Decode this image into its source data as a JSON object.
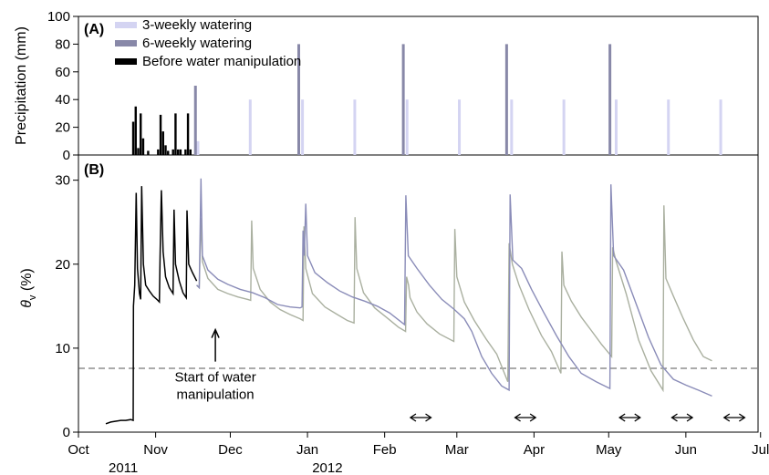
{
  "chart_data": [
    {
      "panel": "(A)",
      "type": "bar",
      "ylabel": "Precipitation (mm)",
      "ylim": [
        0,
        100
      ],
      "yticks": [
        0,
        20,
        40,
        60,
        80,
        100
      ],
      "xlim": [
        0,
        273
      ],
      "legend_position": "top-left",
      "colors": {
        "before": "#000000",
        "six": "#8888a8",
        "three": "#d4d4f2"
      },
      "series": [
        {
          "name": "3-weekly watering",
          "color_key": "three",
          "bars": [
            {
              "x": 48,
              "y": 10
            },
            {
              "x": 69,
              "y": 40
            },
            {
              "x": 90,
              "y": 40
            },
            {
              "x": 111,
              "y": 40
            },
            {
              "x": 132,
              "y": 40
            },
            {
              "x": 153,
              "y": 40
            },
            {
              "x": 174,
              "y": 40
            },
            {
              "x": 195,
              "y": 40
            },
            {
              "x": 216,
              "y": 40
            },
            {
              "x": 237,
              "y": 40
            },
            {
              "x": 258,
              "y": 40
            }
          ]
        },
        {
          "name": "6-weekly watering",
          "color_key": "six",
          "bars": [
            {
              "x": 47,
              "y": 50
            },
            {
              "x": 88.5,
              "y": 80
            },
            {
              "x": 130.5,
              "y": 80
            },
            {
              "x": 172,
              "y": 80
            },
            {
              "x": 213.5,
              "y": 80
            }
          ]
        },
        {
          "name": "Before water manipulation",
          "color_key": "before",
          "bars": [
            {
              "x": 22,
              "y": 24
            },
            {
              "x": 23,
              "y": 35
            },
            {
              "x": 24,
              "y": 5
            },
            {
              "x": 25,
              "y": 30
            },
            {
              "x": 26,
              "y": 12
            },
            {
              "x": 28,
              "y": 3
            },
            {
              "x": 32,
              "y": 4
            },
            {
              "x": 33,
              "y": 29
            },
            {
              "x": 34,
              "y": 17
            },
            {
              "x": 35,
              "y": 7
            },
            {
              "x": 36,
              "y": 3
            },
            {
              "x": 38,
              "y": 4
            },
            {
              "x": 39,
              "y": 30
            },
            {
              "x": 40,
              "y": 4
            },
            {
              "x": 41,
              "y": 4
            },
            {
              "x": 43,
              "y": 4
            },
            {
              "x": 44,
              "y": 30
            },
            {
              "x": 45,
              "y": 4
            }
          ]
        }
      ]
    },
    {
      "panel": "(B)",
      "type": "line",
      "ylabel": "θv (%)",
      "ylim": [
        0,
        33
      ],
      "yticks": [
        0,
        10,
        20,
        30
      ],
      "xlim": [
        0,
        273
      ],
      "x_unit": "days since 1 Oct 2011",
      "xticks": [
        {
          "label": "Oct",
          "x": 0
        },
        {
          "label": "Nov",
          "x": 31
        },
        {
          "label": "Dec",
          "x": 61
        },
        {
          "label": "Jan",
          "x": 92
        },
        {
          "label": "Feb",
          "x": 123
        },
        {
          "label": "Mar",
          "x": 152
        },
        {
          "label": "Apr",
          "x": 183
        },
        {
          "label": "May",
          "x": 213
        },
        {
          "label": "Jun",
          "x": 244
        },
        {
          "label": "Jul",
          "x": 274
        }
      ],
      "year_labels": [
        {
          "label": "2011",
          "x": 18
        },
        {
          "label": "2012",
          "x": 100
        }
      ],
      "reference_line": {
        "y": 7.6,
        "style": "dashed"
      },
      "annotation": {
        "lines": [
          "Start of water",
          "manipulation"
        ],
        "x": 55,
        "arrow_tip_y": 12.2,
        "arrow_tail_y": 8.4
      },
      "double_arrows": [
        {
          "x0": 133,
          "x1": 142
        },
        {
          "x0": 175,
          "x1": 184
        },
        {
          "x0": 217,
          "x1": 226
        },
        {
          "x0": 238,
          "x1": 247
        },
        {
          "x0": 259,
          "x1": 268
        }
      ],
      "series": [
        {
          "name": "Before water manipulation",
          "color_key": "before",
          "points": [
            [
              11,
              1.0
            ],
            [
              13,
              1.2
            ],
            [
              15,
              1.3
            ],
            [
              17,
              1.4
            ],
            [
              19,
              1.4
            ],
            [
              21,
              1.5
            ],
            [
              22,
              1.4
            ],
            [
              22.1,
              15
            ],
            [
              22.6,
              17.5
            ],
            [
              23.2,
              28.5
            ],
            [
              23.7,
              19.5
            ],
            [
              24.5,
              16.5
            ],
            [
              25,
              15.8
            ],
            [
              25.4,
              29.3
            ],
            [
              26.1,
              20
            ],
            [
              27,
              17.5
            ],
            [
              28.5,
              16.8
            ],
            [
              30,
              16.2
            ],
            [
              31.5,
              15.8
            ],
            [
              32.5,
              15.5
            ],
            [
              32.8,
              21
            ],
            [
              33.3,
              28.8
            ],
            [
              34,
              21.5
            ],
            [
              35,
              18.5
            ],
            [
              36.5,
              17.2
            ],
            [
              38,
              16.5
            ],
            [
              38.4,
              26.5
            ],
            [
              39,
              20
            ],
            [
              40.5,
              18
            ],
            [
              42,
              16.6
            ],
            [
              43.3,
              16
            ],
            [
              43.6,
              26.4
            ],
            [
              44.3,
              20
            ],
            [
              45.8,
              19
            ],
            [
              47.5,
              18
            ]
          ]
        },
        {
          "name": "3-weekly watering",
          "color_key": "three",
          "points": [
            [
              47.5,
              17.5
            ],
            [
              48.5,
              17.2
            ],
            [
              49.2,
              25.5
            ],
            [
              49.8,
              20.3
            ],
            [
              52,
              18.3
            ],
            [
              56,
              17
            ],
            [
              60,
              16.5
            ],
            [
              64,
              16.1
            ],
            [
              68,
              15.8
            ],
            [
              69.2,
              15.7
            ],
            [
              69.6,
              25.2
            ],
            [
              70.2,
              19.5
            ],
            [
              73,
              17
            ],
            [
              77,
              15.5
            ],
            [
              81,
              14.6
            ],
            [
              85,
              14.0
            ],
            [
              89,
              13.5
            ],
            [
              90.2,
              13.3
            ],
            [
              90.6,
              24.5
            ],
            [
              91.3,
              19.5
            ],
            [
              94,
              16.5
            ],
            [
              99,
              14.9
            ],
            [
              104,
              14.0
            ],
            [
              108,
              13.3
            ],
            [
              110.7,
              13.0
            ],
            [
              111.1,
              25.6
            ],
            [
              111.8,
              19.5
            ],
            [
              114.5,
              16.6
            ],
            [
              119,
              14.8
            ],
            [
              124,
              13.6
            ],
            [
              128.5,
              12.5
            ],
            [
              131.4,
              12.0
            ],
            [
              131.8,
              18.5
            ],
            [
              132.6,
              17.5
            ],
            [
              133.2,
              16
            ],
            [
              136,
              14.3
            ],
            [
              140,
              12.9
            ],
            [
              145,
              11.7
            ],
            [
              150.8,
              10.8
            ],
            [
              151.2,
              24.2
            ],
            [
              152,
              18.5
            ],
            [
              155,
              15.5
            ],
            [
              159,
              13.3
            ],
            [
              164,
              11
            ],
            [
              168,
              9.3
            ],
            [
              172.5,
              6.0
            ],
            [
              173,
              22.5
            ],
            [
              174.3,
              20.0
            ],
            [
              177,
              17.5
            ],
            [
              181,
              14.6
            ],
            [
              186,
              11.5
            ],
            [
              190,
              9.6
            ],
            [
              193.8,
              7.0
            ],
            [
              194.2,
              21.5
            ],
            [
              195,
              17.5
            ],
            [
              198,
              15.6
            ],
            [
              202,
              13.7
            ],
            [
              206,
              12.1
            ],
            [
              210,
              10.5
            ],
            [
              214.2,
              9.0
            ],
            [
              214.6,
              22
            ],
            [
              216,
              20.3
            ],
            [
              220,
              16.5
            ],
            [
              225,
              11.0
            ],
            [
              230,
              7.3
            ],
            [
              234.8,
              5.0
            ],
            [
              235.2,
              27.0
            ],
            [
              236,
              18.3
            ],
            [
              239,
              16.2
            ],
            [
              243,
              13.5
            ],
            [
              247,
              11.0
            ],
            [
              251,
              9.0
            ],
            [
              254.5,
              8.5
            ]
          ]
        },
        {
          "name": "6-weekly watering",
          "color_key": "six",
          "points": [
            [
              47.5,
              17.5
            ],
            [
              48.5,
              17.2
            ],
            [
              49.2,
              30.2
            ],
            [
              49.8,
              21
            ],
            [
              52,
              19.3
            ],
            [
              56,
              18.2
            ],
            [
              60,
              17.6
            ],
            [
              65,
              17.0
            ],
            [
              70,
              16.6
            ],
            [
              75,
              16.0
            ],
            [
              80,
              15.2
            ],
            [
              85,
              14.9
            ],
            [
              89,
              14.8
            ],
            [
              89.8,
              14.9
            ],
            [
              90.2,
              24.0
            ],
            [
              90.7,
              21.0
            ],
            [
              91.3,
              27.2
            ],
            [
              92,
              21
            ],
            [
              95,
              19.0
            ],
            [
              100,
              17.8
            ],
            [
              105,
              16.8
            ],
            [
              110,
              16.1
            ],
            [
              115,
              15.6
            ],
            [
              120,
              15.0
            ],
            [
              125,
              14.2
            ],
            [
              131,
              12.8
            ],
            [
              131.5,
              28.2
            ],
            [
              132.5,
              21
            ],
            [
              136,
              19.5
            ],
            [
              141,
              17.5
            ],
            [
              146,
              15.8
            ],
            [
              151,
              14.6
            ],
            [
              155,
              13.5
            ],
            [
              158,
              12.0
            ],
            [
              162,
              9.0
            ],
            [
              166,
              7.0
            ],
            [
              170,
              5.5
            ],
            [
              173,
              5.0
            ],
            [
              173.4,
              28.3
            ],
            [
              174.5,
              20.5
            ],
            [
              178,
              19.5
            ],
            [
              182,
              17
            ],
            [
              187,
              14.2
            ],
            [
              192,
              11.5
            ],
            [
              197,
              9.0
            ],
            [
              202,
              7.0
            ],
            [
              208,
              6.0
            ],
            [
              213.5,
              5.2
            ],
            [
              213.9,
              29.5
            ],
            [
              215,
              21
            ],
            [
              219,
              19.3
            ],
            [
              224,
              15.3
            ],
            [
              229,
              11.3
            ],
            [
              234,
              8.0
            ],
            [
              239,
              6.3
            ],
            [
              244,
              5.6
            ],
            [
              249,
              5.0
            ],
            [
              254.5,
              4.3
            ]
          ]
        }
      ]
    }
  ]
}
